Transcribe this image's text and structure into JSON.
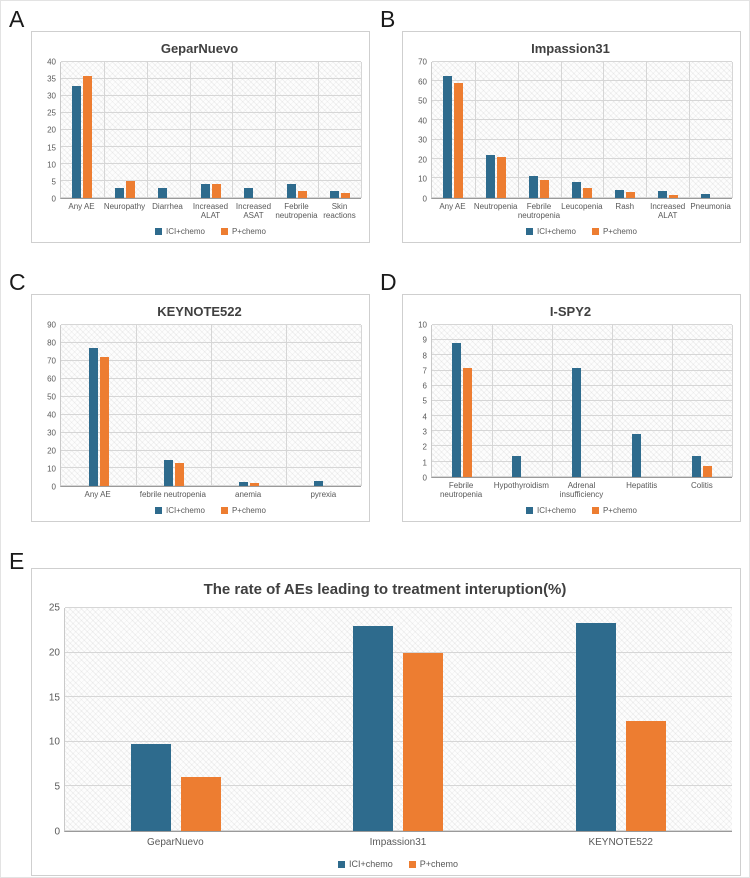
{
  "colors": {
    "series": [
      "#2e6b8d",
      "#ed7d31"
    ],
    "gridline": "#d6d6d6"
  },
  "chart_data": [
    {
      "panel_letter": "A",
      "type": "bar",
      "title": "GeparNuevo",
      "categories": [
        "Any AE",
        "Neuropathy",
        "Diarrhea",
        "Increased ALAT",
        "Increased ASAT",
        "Febrile neutropenia",
        "Skin reactions"
      ],
      "series": [
        {
          "name": "ICI+chemo",
          "values": [
            33,
            3,
            3,
            4,
            3,
            4,
            2
          ]
        },
        {
          "name": "P+chemo",
          "values": [
            36,
            5,
            0,
            4,
            0,
            2,
            1.5
          ]
        }
      ],
      "ylim": [
        0,
        40
      ],
      "ytick_step": 5,
      "grid": "both",
      "legend_position": "bottom"
    },
    {
      "panel_letter": "B",
      "type": "bar",
      "title": "Impassion31",
      "categories": [
        "Any AE",
        "Neutropenia",
        "Febrile neutropenia",
        "Leucopenia",
        "Rash",
        "Increased ALAT",
        "Pneumonia"
      ],
      "series": [
        {
          "name": "ICI+chemo",
          "values": [
            63,
            22,
            11,
            8,
            4,
            3.5,
            2
          ]
        },
        {
          "name": "P+chemo",
          "values": [
            59,
            21,
            9,
            5,
            3,
            1.5,
            0
          ]
        }
      ],
      "ylim": [
        0,
        70
      ],
      "ytick_step": 10,
      "grid": "both",
      "legend_position": "bottom"
    },
    {
      "panel_letter": "C",
      "type": "bar",
      "title": "KEYNOTE522",
      "categories": [
        "Any AE",
        "febrile neutropenia",
        "anemia",
        "pyrexia"
      ],
      "series": [
        {
          "name": "ICI+chemo",
          "values": [
            77,
            15,
            2.5,
            3
          ]
        },
        {
          "name": "P+chemo",
          "values": [
            72,
            13,
            2,
            0
          ]
        }
      ],
      "ylim": [
        0,
        90
      ],
      "ytick_step": 10,
      "grid": "both",
      "legend_position": "bottom"
    },
    {
      "panel_letter": "D",
      "type": "bar",
      "title": "I-SPY2",
      "categories": [
        "Febrile neutropenia",
        "Hypothyroidism",
        "Adrenal insufficiency",
        "Hepatitis",
        "Colitis"
      ],
      "series": [
        {
          "name": "ICI+chemo",
          "values": [
            8.8,
            1.4,
            7.2,
            2.8,
            1.4
          ]
        },
        {
          "name": "P+chemo",
          "values": [
            7.2,
            0,
            0,
            0,
            0.7
          ]
        }
      ],
      "ylim": [
        0,
        10
      ],
      "ytick_step": 1,
      "grid": "both",
      "legend_position": "bottom"
    },
    {
      "panel_letter": "E",
      "type": "bar",
      "title": "The rate of AEs leading to treatment interuption(%)",
      "categories": [
        "GeparNuevo",
        "Impassion31",
        "KEYNOTE522"
      ],
      "series": [
        {
          "name": "ICI+chemo",
          "values": [
            9.7,
            23,
            23.3
          ]
        },
        {
          "name": "P+chemo",
          "values": [
            6.1,
            20,
            12.3
          ]
        }
      ],
      "ylim": [
        0,
        25
      ],
      "ytick_step": 5,
      "grid": "horizontal",
      "legend_position": "bottom"
    }
  ]
}
